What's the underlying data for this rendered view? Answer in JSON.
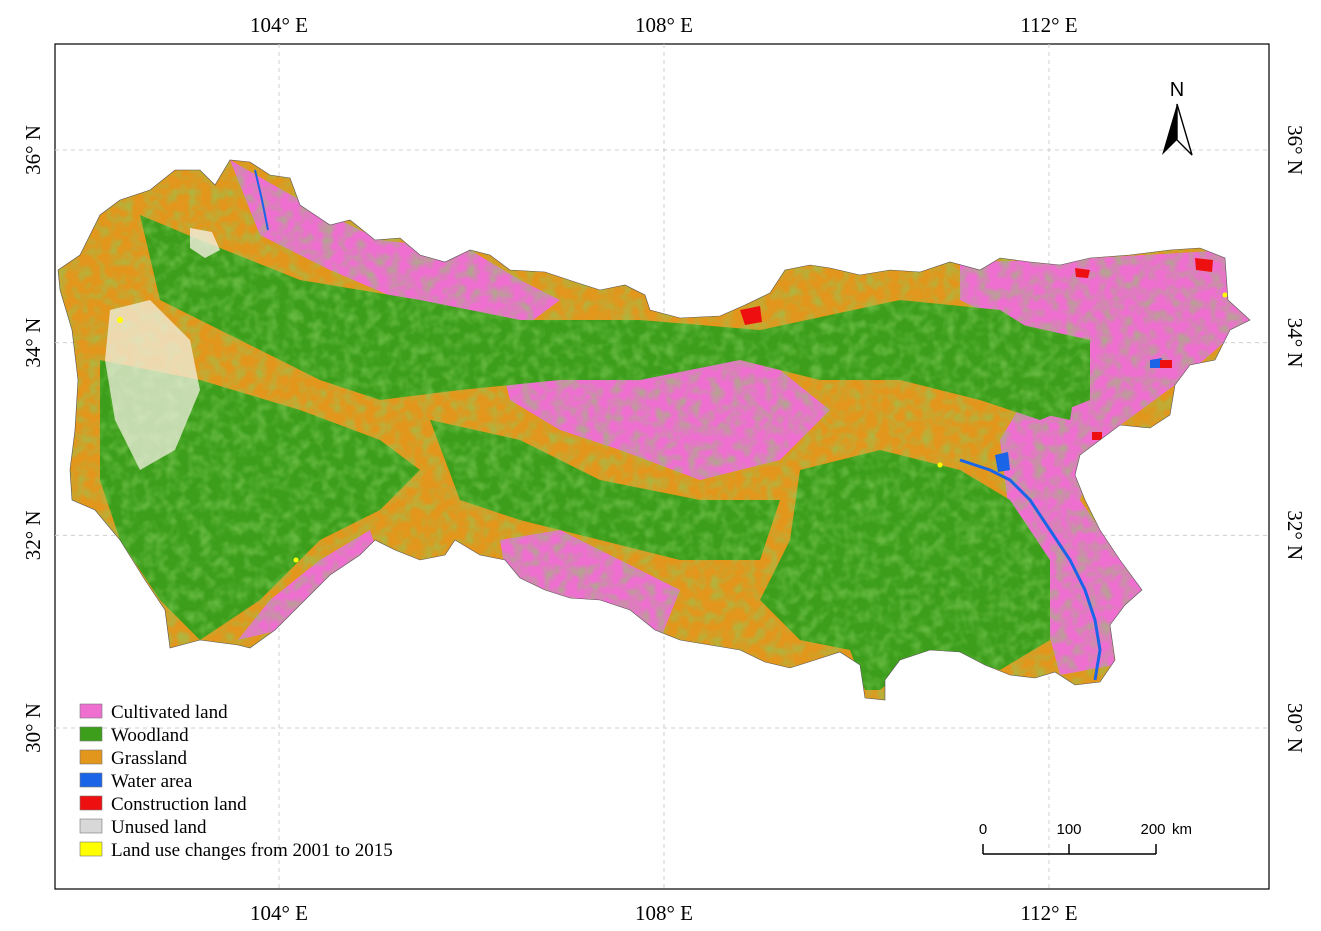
{
  "graticule": {
    "longitudes": [
      {
        "label": "104° E",
        "value": 104
      },
      {
        "label": "108° E",
        "value": 108
      },
      {
        "label": "112° E",
        "value": 112
      }
    ],
    "latitudes": [
      {
        "label": "36° N",
        "value": 36
      },
      {
        "label": "34° N",
        "value": 34
      },
      {
        "label": "32° N",
        "value": 32
      },
      {
        "label": "30° N",
        "value": 30
      }
    ],
    "grid_lines": "dashed-light-gray"
  },
  "north_arrow": {
    "label": "N",
    "icon": "north-arrow-icon"
  },
  "scale_bar": {
    "ticks": [
      "0",
      "100",
      "200"
    ],
    "unit": "km"
  },
  "legend": {
    "items": [
      {
        "label": "Cultivated land",
        "color": "#ee6fd0"
      },
      {
        "label": "Woodland",
        "color": "#3c9e1b"
      },
      {
        "label": "Grassland",
        "color": "#e3961c"
      },
      {
        "label": "Water area",
        "color": "#1a64e8"
      },
      {
        "label": "Construction land",
        "color": "#ee1010"
      },
      {
        "label": "Unused land",
        "color": "#d8d8d8"
      },
      {
        "label": "Land use changes from 2001 to 2015",
        "color": "#ffff00"
      }
    ]
  }
}
